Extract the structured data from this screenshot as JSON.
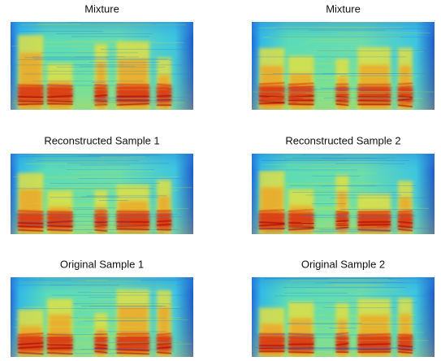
{
  "panels": [
    {
      "title": "Mixture"
    },
    {
      "title": "Mixture"
    },
    {
      "title": "Reconstructed Sample 1"
    },
    {
      "title": "Reconstructed Sample 2"
    },
    {
      "title": "Original Sample 1"
    },
    {
      "title": "Original Sample 2"
    }
  ]
}
